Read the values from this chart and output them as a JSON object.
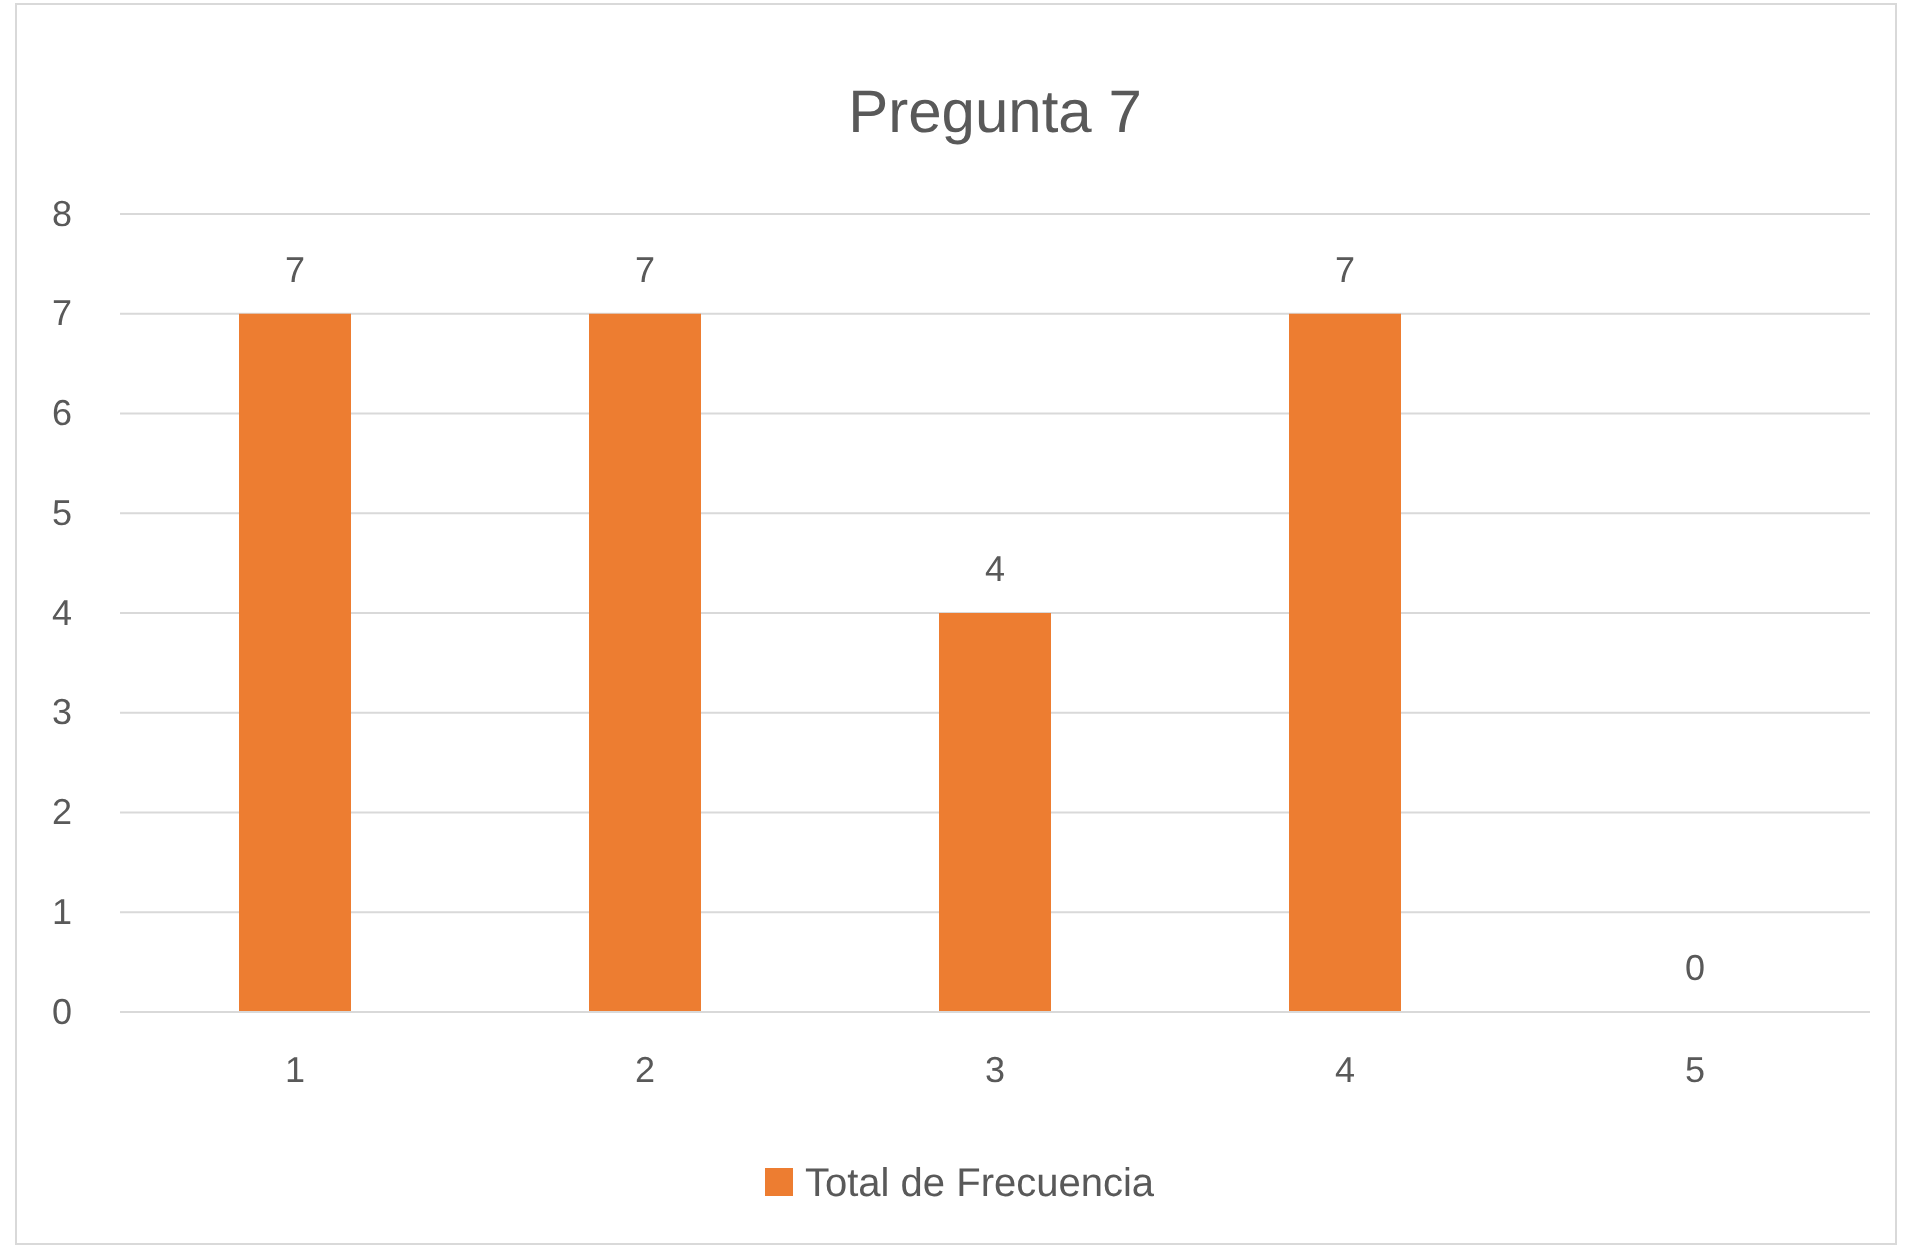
{
  "chart_data": {
    "type": "bar",
    "title": "Pregunta 7",
    "categories": [
      "1",
      "2",
      "3",
      "4",
      "5"
    ],
    "series": [
      {
        "name": "Total de Frecuencia",
        "color": "#ed7d31",
        "values": [
          7,
          7,
          4,
          7,
          0
        ]
      }
    ],
    "ylim": [
      0,
      8
    ],
    "yticks": [
      0,
      1,
      2,
      3,
      4,
      5,
      6,
      7,
      8
    ],
    "grid": "y",
    "legend": "bottom",
    "data_labels": true
  }
}
